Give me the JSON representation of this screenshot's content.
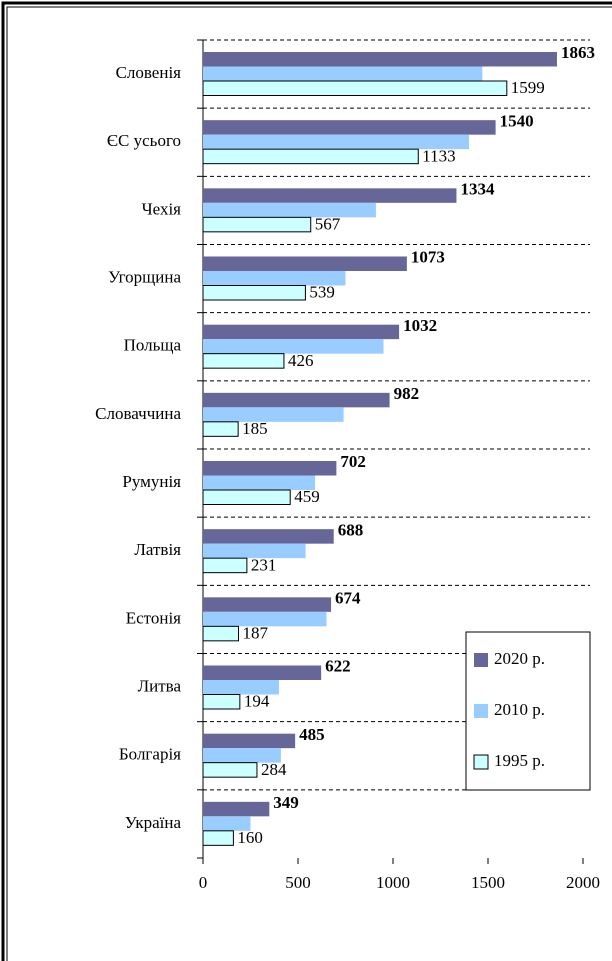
{
  "chart_data": {
    "type": "bar",
    "orientation": "horizontal",
    "categories": [
      "Словенія",
      "ЄС усього",
      "Чехія",
      "Угорщина",
      "Польща",
      "Словаччина",
      "Румунія",
      "Латвія",
      "Естонія",
      "Литва",
      "Болгарія",
      "Україна"
    ],
    "series": [
      {
        "name": "2020 р.",
        "color": "#666699",
        "values": [
          1863,
          1540,
          1334,
          1073,
          1032,
          982,
          702,
          688,
          674,
          622,
          485,
          349
        ]
      },
      {
        "name": "2010 р.",
        "color": "#99ccff",
        "values": [
          1470,
          1400,
          910,
          750,
          950,
          740,
          590,
          540,
          650,
          400,
          410,
          250
        ]
      },
      {
        "name": "1995 р.",
        "color": "#ccffff",
        "values": [
          1599,
          1133,
          567,
          539,
          426,
          185,
          459,
          231,
          187,
          194,
          284,
          160
        ]
      }
    ],
    "value_label_series": [
      "2020 р.",
      "1995 р."
    ],
    "xlim": [
      0,
      2000
    ],
    "xticks": [
      0,
      500,
      1000,
      1500,
      2000
    ],
    "legend": "lower right"
  }
}
